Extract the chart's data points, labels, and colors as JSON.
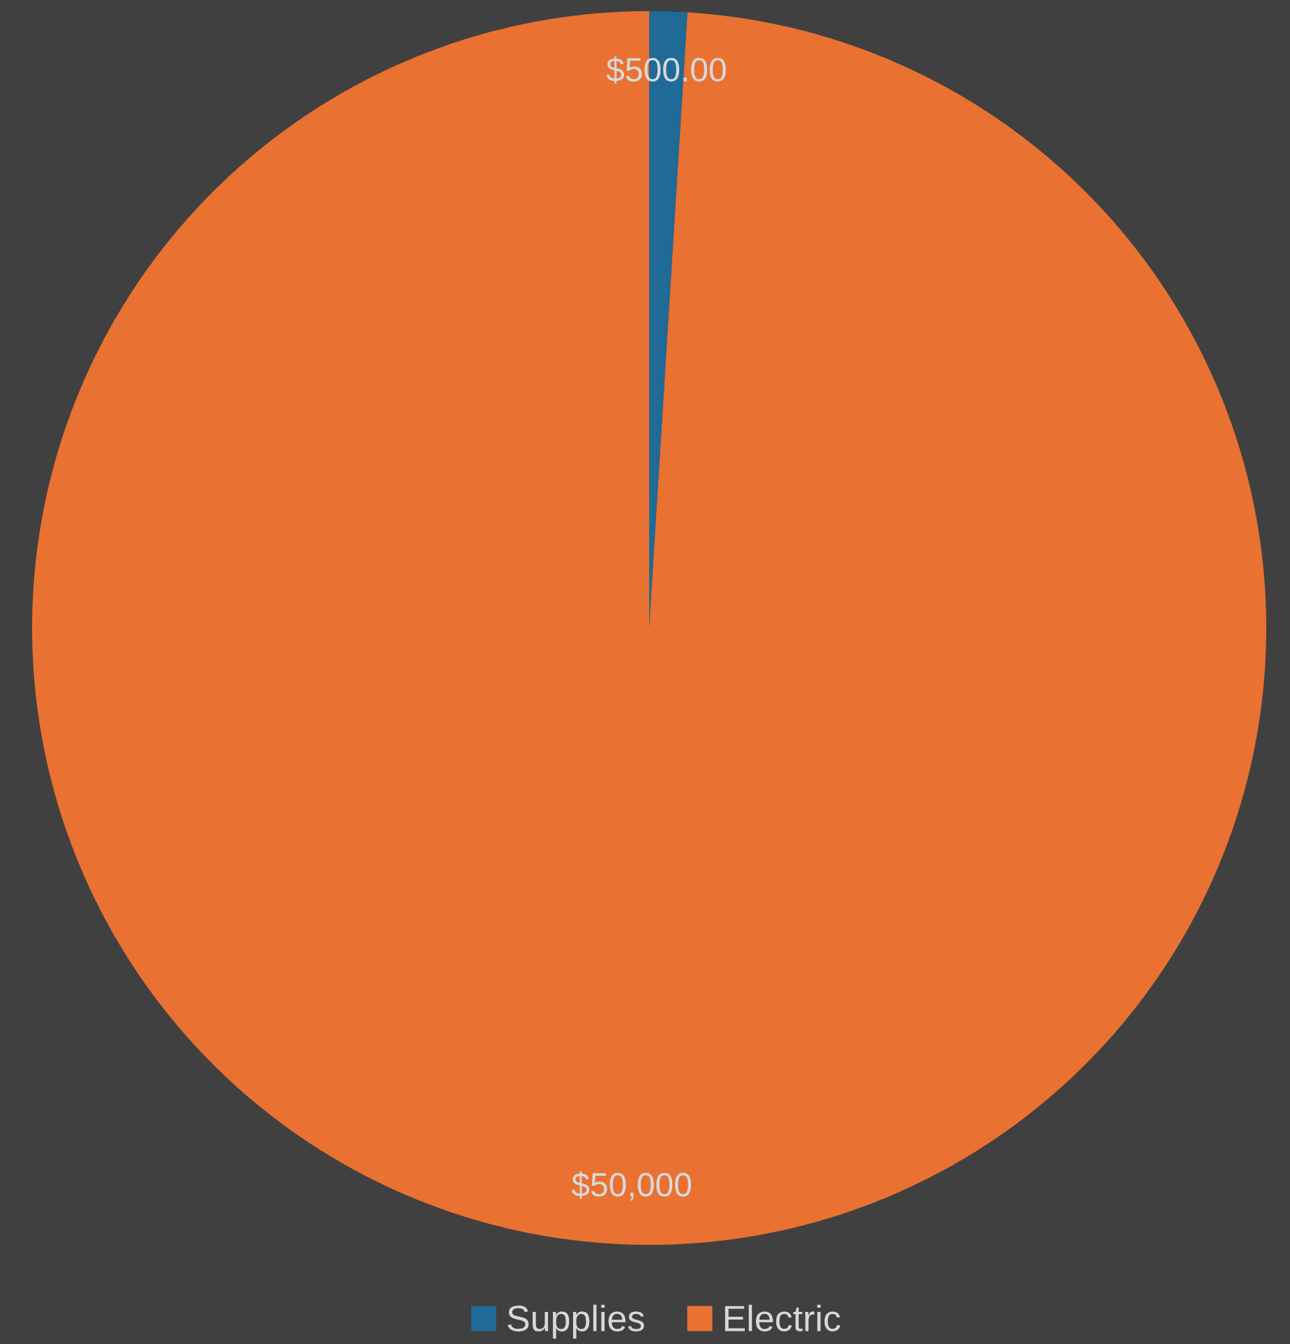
{
  "chart_data": {
    "type": "pie",
    "categories": [
      "Supplies",
      "Electric"
    ],
    "values": [
      500,
      50000
    ],
    "value_labels": [
      "$500.00",
      "$50,000"
    ],
    "colors": [
      "#1f6a96",
      "#e97132"
    ],
    "legend": "bottom"
  }
}
